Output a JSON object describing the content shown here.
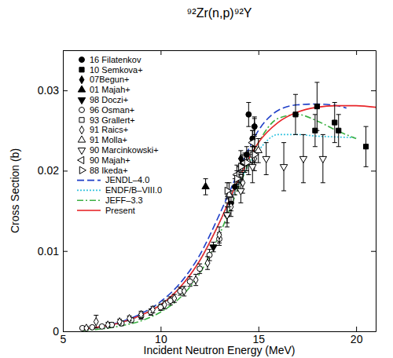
{
  "chart_data": {
    "type": "scatter",
    "title": "⁹²Zr(n,p)⁹²Y",
    "x_label": "Incident Neutron Energy (MeV)",
    "y_label": "Cross Section (b)",
    "xlim": [
      5,
      21
    ],
    "xticks": [
      5,
      10,
      15,
      20
    ],
    "ylim": [
      0,
      0.035
    ],
    "yticks": [
      0,
      0.01,
      0.02,
      0.03
    ],
    "legend": "upper left",
    "series": [
      {
        "name": "16 Filatenkov",
        "type": "scatter",
        "marker": "circle",
        "color": "#000000",
        "x": [
          13.4,
          13.6,
          13.8,
          14.0,
          14.2,
          14.4,
          14.5,
          14.7,
          14.8
        ],
        "values": [
          0.0145,
          0.016,
          0.018,
          0.0195,
          0.021,
          0.022,
          0.027,
          0.024,
          0.0255
        ],
        "errors": [
          0.001,
          0.001,
          0.001,
          0.001,
          0.001,
          0.001,
          0.0015,
          0.001,
          0.001
        ]
      },
      {
        "name": "10 Semkova+",
        "type": "scatter",
        "marker": "square",
        "color": "#000000",
        "x": [
          16.9,
          17.9,
          18.0,
          18.9,
          19.1,
          20.5
        ],
        "values": [
          0.027,
          0.025,
          0.028,
          0.026,
          0.025,
          0.023
        ],
        "errors": [
          0.0025,
          0.002,
          0.003,
          0.0025,
          0.002,
          0.0025
        ]
      },
      {
        "name": "07Begun+",
        "type": "scatter",
        "marker": "diamond",
        "color": "#000000",
        "x": [
          14.1,
          14.8
        ],
        "values": [
          0.0215,
          0.0255
        ],
        "errors": [
          0.001,
          0.0012
        ]
      },
      {
        "name": "01 Majah+",
        "type": "scatter",
        "marker": "triangle-up",
        "color": "#000000",
        "x": [
          12.3
        ],
        "values": [
          0.018
        ],
        "errors": [
          0.001
        ]
      },
      {
        "name": "98 Doczi+",
        "type": "scatter",
        "marker": "triangle-down",
        "color": "#000000",
        "x": [
          12.7
        ],
        "values": [
          0.0105
        ],
        "errors": [
          0.0006
        ]
      },
      {
        "name": "96 Osman+",
        "type": "scatter",
        "marker": "circle-open",
        "color": "#000000",
        "x": [
          6.0,
          6.5,
          7.0,
          7.5,
          8.0,
          8.5,
          9.0,
          9.5,
          10.0,
          10.5,
          11.0,
          11.5,
          12.0,
          12.5,
          13.0
        ],
        "values": [
          0.0004,
          0.0005,
          0.0006,
          0.0008,
          0.001,
          0.0014,
          0.0019,
          0.0024,
          0.003,
          0.0038,
          0.005,
          0.0062,
          0.0078,
          0.0095,
          0.0115
        ],
        "errors": [
          0.0002,
          0.0002,
          0.0002,
          0.0003,
          0.0003,
          0.0003,
          0.0004,
          0.0004,
          0.0004,
          0.0005,
          0.0005,
          0.0006,
          0.0006,
          0.0007,
          0.0008
        ]
      },
      {
        "name": "93 Grallert+",
        "type": "scatter",
        "marker": "square-open",
        "color": "#000000",
        "x": [
          13.6,
          14.1,
          14.7
        ],
        "values": [
          0.0165,
          0.0195,
          0.022
        ],
        "errors": [
          0.001,
          0.001,
          0.001
        ]
      },
      {
        "name": "91 Raics+",
        "type": "scatter",
        "marker": "diamond-open",
        "color": "#000000",
        "x": [
          6.2,
          6.7,
          7.3,
          7.9,
          8.4,
          9.0,
          9.6,
          10.2,
          10.7,
          11.2,
          11.8,
          12.4,
          13.0,
          13.6,
          14.2,
          14.8
        ],
        "values": [
          0.0004,
          0.0012,
          0.0008,
          0.0012,
          0.0016,
          0.0021,
          0.0027,
          0.0033,
          0.0041,
          0.005,
          0.0064,
          0.0085,
          0.012,
          0.0155,
          0.0185,
          0.0215
        ],
        "errors": [
          0.0002,
          0.0008,
          0.0003,
          0.0003,
          0.0003,
          0.0004,
          0.0004,
          0.0005,
          0.0005,
          0.0006,
          0.0007,
          0.0008,
          0.001,
          0.0012,
          0.0013,
          0.0015
        ]
      },
      {
        "name": "91 Molla+",
        "type": "scatter",
        "marker": "triangle-up-open",
        "color": "#000000",
        "x": [
          13.5,
          14.0,
          14.5,
          15.0
        ],
        "values": [
          0.017,
          0.019,
          0.021,
          0.0225
        ],
        "errors": [
          0.0015,
          0.0015,
          0.0015,
          0.0015
        ]
      },
      {
        "name": "90 Marcinkowski+",
        "type": "scatter",
        "marker": "triangle-down-open",
        "color": "#000000",
        "x": [
          13.4,
          14.1,
          14.7,
          15.4,
          16.3,
          17.3,
          18.3
        ],
        "values": [
          0.0145,
          0.0175,
          0.0205,
          0.0215,
          0.0205,
          0.0215,
          0.0215
        ],
        "errors": [
          0.0015,
          0.0015,
          0.002,
          0.002,
          0.003,
          0.003,
          0.003
        ]
      },
      {
        "name": "90 Majah+",
        "type": "scatter",
        "marker": "triangle-left-open",
        "color": "#000000",
        "x": [
          13.9,
          14.3,
          14.7
        ],
        "values": [
          0.0195,
          0.021,
          0.0235
        ],
        "errors": [
          0.0012,
          0.0012,
          0.0015
        ]
      },
      {
        "name": "88 Ikeda+",
        "type": "scatter",
        "marker": "triangle-right-open",
        "color": "#000000",
        "x": [
          13.4,
          13.9,
          14.1,
          14.4,
          14.8
        ],
        "values": [
          0.0175,
          0.019,
          0.0205,
          0.021,
          0.022
        ],
        "errors": [
          0.001,
          0.001,
          0.001,
          0.001,
          0.001
        ]
      },
      {
        "name": "JENDL–4.0",
        "type": "line",
        "line_style": "dashed",
        "color": "#1f3fc8",
        "x": [
          6,
          7,
          8,
          9,
          10,
          11,
          12,
          13,
          14,
          15,
          16,
          17,
          18,
          19,
          19.5
        ],
        "values": [
          0.0003,
          0.0006,
          0.0012,
          0.0022,
          0.0037,
          0.006,
          0.0095,
          0.0145,
          0.02,
          0.025,
          0.0275,
          0.0282,
          0.0283,
          0.0281,
          0.0278
        ]
      },
      {
        "name": "ENDF/B–VIII.0",
        "type": "line",
        "line_style": "dotted",
        "color": "#35c4e0",
        "x": [
          6,
          7,
          8,
          9,
          10,
          11,
          12,
          13,
          14,
          15,
          16,
          17,
          18,
          19,
          20
        ],
        "values": [
          0.0003,
          0.0006,
          0.0011,
          0.002,
          0.0034,
          0.0055,
          0.0088,
          0.0135,
          0.0185,
          0.0225,
          0.0245,
          0.0245,
          0.0243,
          0.0242,
          0.0241
        ]
      },
      {
        "name": "JEFF–3.3",
        "type": "line",
        "line_style": "dash-dot",
        "color": "#3cb043",
        "x": [
          6,
          7,
          8,
          9,
          10,
          11,
          12,
          13,
          14,
          15,
          16,
          17,
          18,
          19,
          20
        ],
        "values": [
          0.0001,
          0.0003,
          0.0007,
          0.0013,
          0.0024,
          0.0042,
          0.0072,
          0.012,
          0.018,
          0.0235,
          0.0265,
          0.027,
          0.0262,
          0.025,
          0.024
        ]
      },
      {
        "name": "Present",
        "type": "line",
        "line_style": "solid",
        "color": "#e8262a",
        "x": [
          6,
          7,
          8,
          9,
          10,
          11,
          12,
          13,
          14,
          15,
          16,
          17,
          18,
          19,
          20,
          21
        ],
        "values": [
          0.0003,
          0.0006,
          0.0011,
          0.002,
          0.0033,
          0.0055,
          0.0088,
          0.0135,
          0.019,
          0.0235,
          0.026,
          0.0273,
          0.0279,
          0.0281,
          0.0281,
          0.0279
        ]
      }
    ]
  }
}
